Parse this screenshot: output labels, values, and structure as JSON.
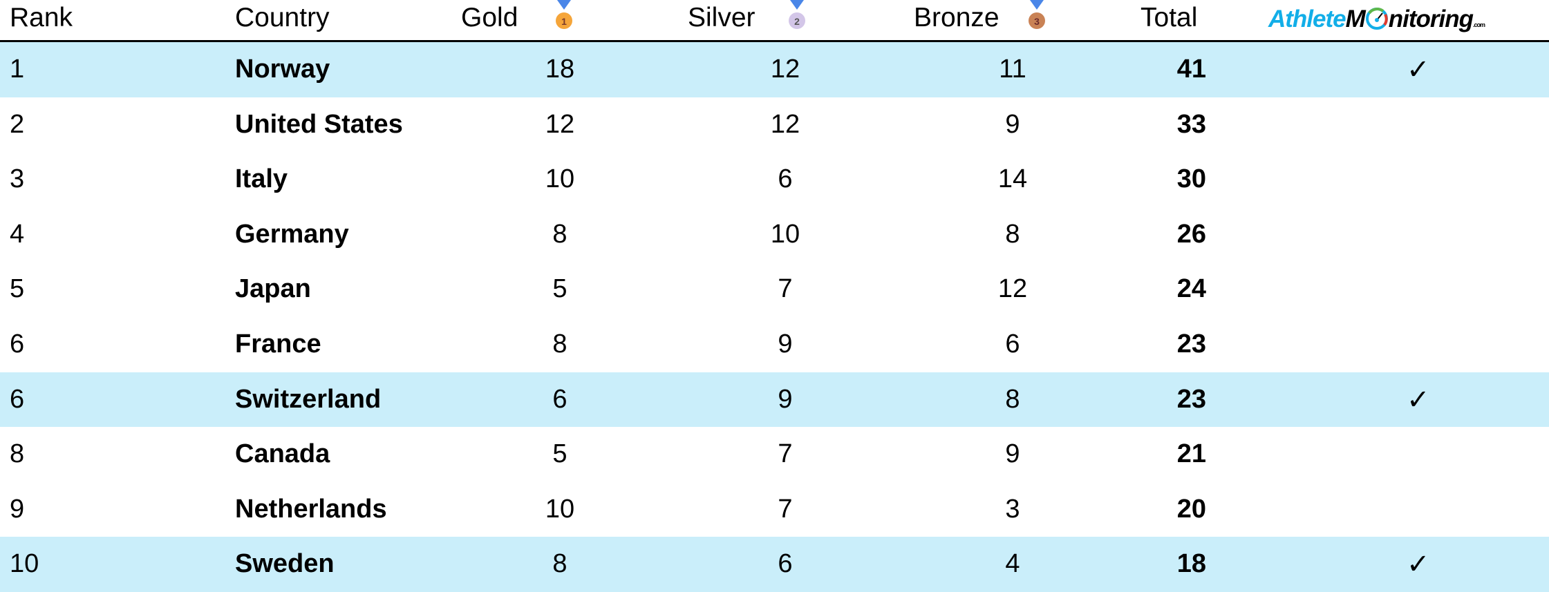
{
  "header": {
    "rank": "Rank",
    "country": "Country",
    "gold": "Gold",
    "silver": "Silver",
    "bronze": "Bronze",
    "total": "Total",
    "medals": {
      "gold": {
        "icon": "gold-medal-icon",
        "number": "1",
        "color": "#f5a53a"
      },
      "silver": {
        "icon": "silver-medal-icon",
        "number": "2",
        "color": "#d3c6e8"
      },
      "bronze": {
        "icon": "bronze-medal-icon",
        "number": "3",
        "color": "#c98255"
      }
    },
    "logo": {
      "part1": "Athlete",
      "part2": "M",
      "part3": "nitoring",
      "suffix": ".com",
      "colors": {
        "part1": "#12aee8",
        "part3": "#000000"
      }
    }
  },
  "highlight_color": "#caeefa",
  "rows": [
    {
      "rank": "1",
      "country": "Norway",
      "gold": "18",
      "silver": "12",
      "bronze": "11",
      "total": "41",
      "check": "✓",
      "highlighted": true
    },
    {
      "rank": "2",
      "country": "United States",
      "gold": "12",
      "silver": "12",
      "bronze": "9",
      "total": "33",
      "check": "",
      "highlighted": false
    },
    {
      "rank": "3",
      "country": "Italy",
      "gold": "10",
      "silver": "6",
      "bronze": "14",
      "total": "30",
      "check": "",
      "highlighted": false
    },
    {
      "rank": "4",
      "country": "Germany",
      "gold": "8",
      "silver": "10",
      "bronze": "8",
      "total": "26",
      "check": "",
      "highlighted": false
    },
    {
      "rank": "5",
      "country": "Japan",
      "gold": "5",
      "silver": "7",
      "bronze": "12",
      "total": "24",
      "check": "",
      "highlighted": false
    },
    {
      "rank": "6",
      "country": "France",
      "gold": "8",
      "silver": "9",
      "bronze": "6",
      "total": "23",
      "check": "",
      "highlighted": false
    },
    {
      "rank": "6",
      "country": "Switzerland",
      "gold": "6",
      "silver": "9",
      "bronze": "8",
      "total": "23",
      "check": "✓",
      "highlighted": true
    },
    {
      "rank": "8",
      "country": "Canada",
      "gold": "5",
      "silver": "7",
      "bronze": "9",
      "total": "21",
      "check": "",
      "highlighted": false
    },
    {
      "rank": "9",
      "country": "Netherlands",
      "gold": "10",
      "silver": "7",
      "bronze": "3",
      "total": "20",
      "check": "",
      "highlighted": false
    },
    {
      "rank": "10",
      "country": "Sweden",
      "gold": "8",
      "silver": "6",
      "bronze": "4",
      "total": "18",
      "check": "✓",
      "highlighted": true
    }
  ]
}
